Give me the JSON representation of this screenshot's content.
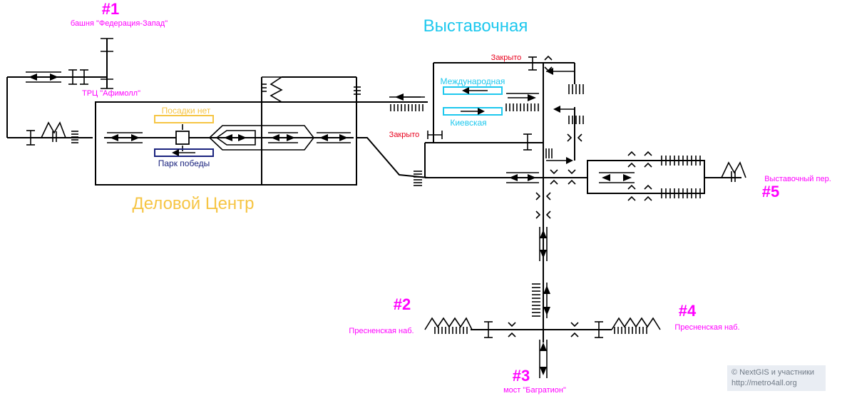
{
  "colors": {
    "exit": "#ff00ff",
    "closed": "#e8001c",
    "vystavochnaya": "#1ec8ee",
    "delovoy": "#f6c544",
    "park_pobedy": "#1a237e",
    "lines": "#000000"
  },
  "stations": {
    "vystavochnaya_title": "Выставочная",
    "delovoy_title": "Деловой Центр",
    "mezhdunarodnaya": "Международная",
    "kievskaya": "Киевская",
    "posadki_net": "Посадки нет",
    "park_pobedy": "Парк победы"
  },
  "exits": {
    "e1_num": "#1",
    "e1_name": "башня \"Федерация-Запад\"",
    "e1_sub": "ТРЦ \"Афимолл\"",
    "e2_num": "#2",
    "e2_name": "Пресненская наб.",
    "e3_num": "#3",
    "e3_name": "мост \"Багратион\"",
    "e4_num": "#4",
    "e4_name": "Пресненская наб.",
    "e5_num": "#5",
    "e5_name": "Выставочный пер."
  },
  "closed": {
    "c1": "Закрыто",
    "c2": "Закрыто"
  },
  "copyright": {
    "line1": "© NextGIS и участники",
    "line2": "http://metro4all.org"
  }
}
